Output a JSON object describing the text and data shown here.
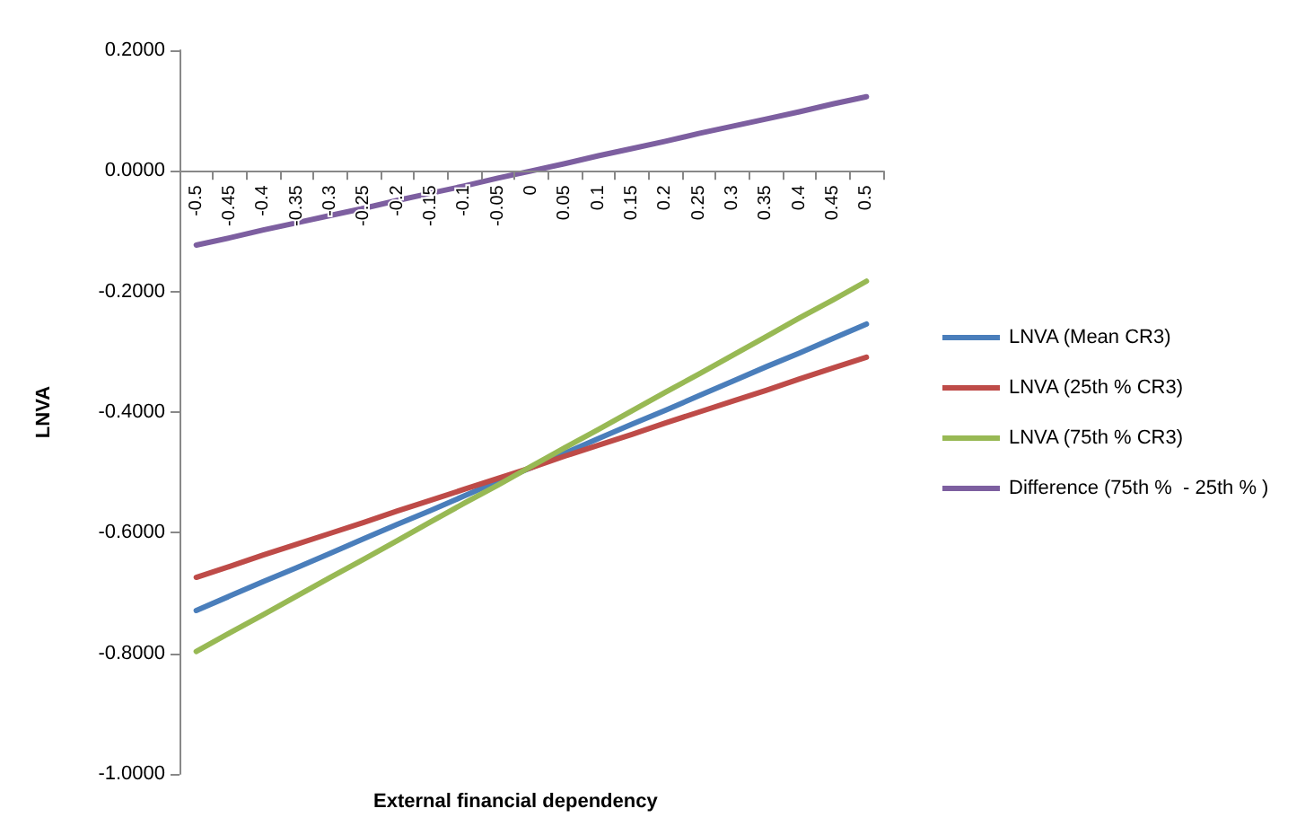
{
  "chart_data": {
    "type": "line",
    "xlabel": "External financial dependency",
    "ylabel": "LNVA",
    "categories": [
      "-0.5",
      "-0.45",
      "-0.4",
      "-0.35",
      "-0.3",
      "-0.25",
      "-0.2",
      "-0.15",
      "-0.1",
      "-0.05",
      "0",
      "0.05",
      "0.1",
      "0.15",
      "0.2",
      "0.25",
      "0.3",
      "0.35",
      "0.4",
      "0.45",
      "0.5"
    ],
    "series": [
      {
        "name": "LNVA (Mean CR3)",
        "color": "#4a7ebb",
        "values": [
          -0.729,
          -0.705,
          -0.681,
          -0.658,
          -0.634,
          -0.61,
          -0.586,
          -0.563,
          -0.539,
          -0.515,
          -0.492,
          -0.468,
          -0.444,
          -0.42,
          -0.397,
          -0.373,
          -0.349,
          -0.325,
          -0.302,
          -0.278,
          -0.254
        ]
      },
      {
        "name": "LNVA (25th % CR3)",
        "color": "#be4b48",
        "values": [
          -0.674,
          -0.656,
          -0.637,
          -0.619,
          -0.601,
          -0.583,
          -0.564,
          -0.546,
          -0.528,
          -0.51,
          -0.492,
          -0.473,
          -0.455,
          -0.437,
          -0.418,
          -0.4,
          -0.382,
          -0.364,
          -0.345,
          -0.327,
          -0.309
        ]
      },
      {
        "name": "LNVA (75th % CR3)",
        "color": "#98b954",
        "values": [
          -0.797,
          -0.766,
          -0.736,
          -0.705,
          -0.674,
          -0.644,
          -0.613,
          -0.582,
          -0.551,
          -0.521,
          -0.49,
          -0.459,
          -0.429,
          -0.398,
          -0.367,
          -0.337,
          -0.306,
          -0.275,
          -0.244,
          -0.214,
          -0.183
        ]
      },
      {
        "name": "Difference (75th %  - 25th % )",
        "color": "#7d5fa0",
        "values": [
          -0.123,
          -0.111,
          -0.098,
          -0.086,
          -0.074,
          -0.062,
          -0.049,
          -0.037,
          -0.025,
          -0.012,
          0,
          0.012,
          0.025,
          0.037,
          0.049,
          0.062,
          0.074,
          0.086,
          0.098,
          0.111,
          0.123
        ]
      }
    ],
    "ylim": [
      -1.0,
      0.2
    ],
    "yticks": [
      {
        "value": -1.0,
        "label": "-1.0000"
      },
      {
        "value": -0.8,
        "label": "-0.8000"
      },
      {
        "value": -0.6,
        "label": "-0.6000"
      },
      {
        "value": -0.4,
        "label": "-0.4000"
      },
      {
        "value": -0.2,
        "label": "-0.2000"
      },
      {
        "value": 0,
        "label": "0.0000"
      },
      {
        "value": 0.2,
        "label": "0.2000"
      }
    ],
    "grid": false,
    "legend": "right",
    "marker": "none",
    "line_style": "solid"
  }
}
